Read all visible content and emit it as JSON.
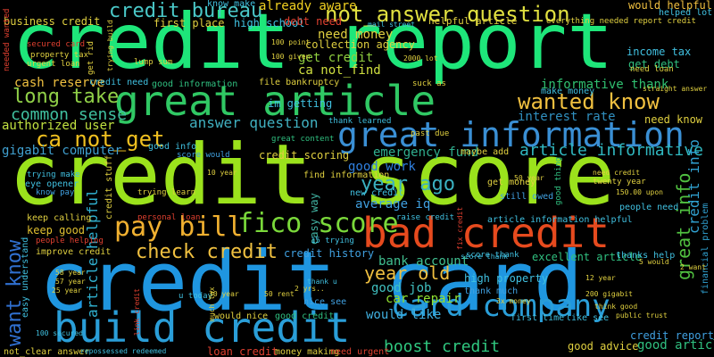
{
  "cloud": {
    "words": [
      {
        "name": "word-credit-report",
        "text": "credit report",
        "color": "#1ee67a"
      },
      {
        "name": "word-credit-score",
        "text": "credit score",
        "color": "#9be21c"
      },
      {
        "name": "word-credit-card",
        "text": "credit card",
        "color": "#1f96e0"
      },
      {
        "name": "word-great-article",
        "text": "great article",
        "color": "#30c864"
      },
      {
        "name": "word-bad-credit",
        "text": "bad credit",
        "color": "#e64a1e"
      },
      {
        "name": "word-great-information",
        "text": "great information",
        "color": "#3a8fd4"
      },
      {
        "name": "word-build-credit",
        "text": "build credit",
        "color": "#2a9ed8"
      },
      {
        "name": "word-card-company",
        "text": "card company",
        "color": "#2a9ed8"
      },
      {
        "name": "word-fico-score",
        "text": "fico score",
        "color": "#7ad83a"
      },
      {
        "name": "word-pay-bill",
        "text": "pay bill",
        "color": "#f0b030"
      },
      {
        "name": "word-credit-bureau",
        "text": "credit bureau",
        "color": "#4ac8c8"
      },
      {
        "name": "word-not-answer-question",
        "text": "not_answer question",
        "color": "#e0e040"
      },
      {
        "name": "word-already-aware",
        "text": "already aware",
        "color": "#f0d020"
      },
      {
        "name": "word-long-take",
        "text": "long take",
        "color": "#90d048"
      },
      {
        "name": "word-wanted-know",
        "text": "wanted know",
        "color": "#f0c040"
      },
      {
        "name": "word-ca-not-get",
        "text": "ca not_get",
        "color": "#f0c020"
      },
      {
        "name": "word-year-ago",
        "text": "year ago",
        "color": "#3ab0c0"
      },
      {
        "name": "word-year-old",
        "text": "year old",
        "color": "#f0c040"
      },
      {
        "name": "word-check-credit",
        "text": "check credit",
        "color": "#f0c040"
      },
      {
        "name": "word-boost-credit",
        "text": "boost credit",
        "color": "#30c880"
      },
      {
        "name": "word-article-informative",
        "text": "article informative",
        "color": "#30b8c0"
      },
      {
        "name": "word-want-know",
        "text": "want know",
        "color": "#3070d0"
      },
      {
        "name": "word-great-info",
        "text": "great info",
        "color": "#50c040"
      },
      {
        "name": "word-answer-question",
        "text": "answer question",
        "color": "#40b0c0"
      },
      {
        "name": "word-common-sense",
        "text": "common sense",
        "color": "#40c0a0"
      },
      {
        "name": "word-cash-reserve",
        "text": "cash reserve",
        "color": "#f0c040"
      },
      {
        "name": "word-authorized-user",
        "text": "authorized user",
        "color": "#c0e040"
      },
      {
        "name": "word-gigabit-computer",
        "text": "gigabit computer",
        "color": "#40a0d0"
      },
      {
        "name": "word-car-repair",
        "text": "car repair",
        "color": "#90e030"
      },
      {
        "name": "word-good-job",
        "text": "good job",
        "color": "#40c0c0"
      },
      {
        "name": "word-bank-account",
        "text": "bank account",
        "color": "#40c090"
      },
      {
        "name": "word-would-like",
        "text": "would like",
        "color": "#40b0e0"
      },
      {
        "name": "word-good-work",
        "text": "good work",
        "color": "#3080e0"
      },
      {
        "name": "word-emergency-fund",
        "text": "emergency fund",
        "color": "#30b090"
      },
      {
        "name": "word-interest-rate",
        "text": "interest rate",
        "color": "#3090c0"
      },
      {
        "name": "word-informative-thank",
        "text": "informative thank",
        "color": "#30c070"
      },
      {
        "name": "word-would-helpful",
        "text": "would helpful",
        "color": "#f0c040"
      },
      {
        "name": "word-get-credit",
        "text": "get credit",
        "color": "#90d040"
      },
      {
        "name": "word-ca-not-find",
        "text": "ca not_find",
        "color": "#d0e040"
      },
      {
        "name": "word-need-money",
        "text": "need money",
        "color": "#e0d040"
      },
      {
        "name": "word-collection-agency",
        "text": "collection agency",
        "color": "#e0d040"
      },
      {
        "name": "word-business-credit",
        "text": "business credit",
        "color": "#e0d040"
      },
      {
        "name": "word-good-article",
        "text": "good article",
        "color": "#30c080"
      },
      {
        "name": "word-credit-info",
        "text": "credit info",
        "color": "#30a0d0"
      },
      {
        "name": "word-average-iq",
        "text": "average iq",
        "color": "#40a0e0"
      },
      {
        "name": "word-easy-way",
        "text": "easy way",
        "color": "#40b0a0"
      },
      {
        "name": "word-article-helpful",
        "text": "article helpful",
        "color": "#30b0d0"
      },
      {
        "name": "word-keep-good",
        "text": "keep good",
        "color": "#e0c030"
      },
      {
        "name": "word-credit-history",
        "text": "credit history",
        "color": "#40a0e0"
      },
      {
        "name": "word-credit-scoring",
        "text": "credit scoring",
        "color": "#e0d040"
      },
      {
        "name": "word-im-getting",
        "text": "im getting",
        "color": "#40c0e0"
      },
      {
        "name": "word-first-place",
        "text": "first place",
        "color": "#e0d040"
      },
      {
        "name": "word-high-school",
        "text": "high school",
        "color": "#40c0e0"
      },
      {
        "name": "word-debt-need",
        "text": "debt need",
        "color": "#e04030"
      },
      {
        "name": "word-income-tax",
        "text": "income tax",
        "color": "#40c0e0"
      },
      {
        "name": "word-get-debt",
        "text": "get debt",
        "color": "#30c080"
      },
      {
        "name": "word-need-know",
        "text": "need know",
        "color": "#e0d040"
      },
      {
        "name": "word-make-money",
        "text": "make money",
        "color": "#40c0e0"
      },
      {
        "name": "word-people-need",
        "text": "people need",
        "color": "#40c0e0"
      },
      {
        "name": "word-still-owed",
        "text": "still owed",
        "color": "#40a0e0"
      },
      {
        "name": "word-high-property",
        "text": "high property",
        "color": "#40c0e0"
      },
      {
        "name": "word-thank-much",
        "text": "thank much",
        "color": "#40a0e0"
      },
      {
        "name": "word-excellent-article",
        "text": "excellent article",
        "color": "#30c080"
      },
      {
        "name": "word-thanks-help",
        "text": "thanks help",
        "color": "#40c0e0"
      },
      {
        "name": "word-credit-reporting",
        "text": "credit reporting",
        "color": "#40a0e0"
      },
      {
        "name": "word-financial-problem",
        "text": "financial problem",
        "color": "#30a0d0"
      },
      {
        "name": "word-loan-credit",
        "text": "loan credit",
        "color": "#e04030"
      },
      {
        "name": "word-money-making",
        "text": "money making",
        "color": "#e0d040"
      },
      {
        "name": "word-need-urgent",
        "text": "need urgent",
        "color": "#e04030"
      },
      {
        "name": "word-not-clear-answer",
        "text": "not_clear answer",
        "color": "#e0d040"
      },
      {
        "name": "word-first-time",
        "text": "first time",
        "color": "#40c0e0"
      },
      {
        "name": "word-like-see",
        "text": "like see",
        "color": "#40c0e0"
      },
      {
        "name": "word-good-advice",
        "text": "good advice",
        "color": "#e0d040"
      },
      {
        "name": "word-nice-see",
        "text": "nice see",
        "color": "#40a0e0"
      },
      {
        "name": "word-would-nice",
        "text": "would nice",
        "color": "#e0d040"
      },
      {
        "name": "word-good-credit",
        "text": "good credit",
        "color": "#30c080"
      },
      {
        "name": "word-easy-understand",
        "text": "easy understand",
        "color": "#40c0e0"
      },
      {
        "name": "word-improve-credit",
        "text": "improve credit",
        "color": "#30c080"
      },
      {
        "name": "word-keep-calling",
        "text": "keep calling",
        "color": "#e0d040"
      },
      {
        "name": "word-people-helping",
        "text": "people helping",
        "color": "#e04030"
      },
      {
        "name": "word-eye-opener",
        "text": "eye opener",
        "color": "#40c0e0"
      },
      {
        "name": "word-trying-make",
        "text": "trying make",
        "color": "#40c0e0"
      },
      {
        "name": "word-know-pay",
        "text": "know pay",
        "color": "#40a0e0"
      },
      {
        "name": "word-trying-learn",
        "text": "trying learn",
        "color": "#e0d040"
      },
      {
        "name": "word-personal-loan",
        "text": "personal loan",
        "color": "#e04030"
      },
      {
        "name": "word-credit-stuff",
        "text": "credit stuff",
        "color": "#e0d040"
      },
      {
        "name": "word-score-would",
        "text": "score would",
        "color": "#40a0e0"
      },
      {
        "name": "word-good-info",
        "text": "good info",
        "color": "#40c0e0"
      },
      {
        "name": "word-new-credit",
        "text": "new credit",
        "color": "#40c0e0"
      },
      {
        "name": "word-find-information",
        "text": "find information",
        "color": "#e0d040"
      },
      {
        "name": "word-get-money",
        "text": "get money",
        "color": "#e0d040"
      },
      {
        "name": "word-maybe-add",
        "text": "maybe add",
        "color": "#e0d040"
      },
      {
        "name": "word-raise-credit",
        "text": "raise credit",
        "color": "#40c0e0"
      },
      {
        "name": "word-article-information-helpful",
        "text": "article information helpful",
        "color": "#40c0e0"
      },
      {
        "name": "word-score-thank",
        "text": "score thank",
        "color": "#40c0e0"
      },
      {
        "name": "word-thank-learned",
        "text": "thank learned",
        "color": "#40c0e0"
      },
      {
        "name": "word-past-due",
        "text": "past due",
        "color": "#e0d040"
      },
      {
        "name": "word-great-content",
        "text": "great content",
        "color": "#30c080"
      },
      {
        "name": "word-file-bankruptcy",
        "text": "file bankruptcy",
        "color": "#e0d040"
      },
      {
        "name": "word-good-information",
        "text": "good information",
        "color": "#30c080"
      },
      {
        "name": "word-suck-as",
        "text": "suck as",
        "color": "#e0d040"
      },
      {
        "name": "word-helpful-article",
        "text": "helpful article",
        "color": "#e0d040"
      },
      {
        "name": "word-everything-needed-report-credit",
        "text": "everything needed report credit",
        "color": "#e0d040"
      },
      {
        "name": "word-know-make",
        "text": "know make",
        "color": "#40c0e0"
      },
      {
        "name": "word-helped-lot",
        "text": "helped lot",
        "color": "#40c0e0"
      },
      {
        "name": "word-secured-card",
        "text": "secured card",
        "color": "#e04030"
      },
      {
        "name": "word-property-tax",
        "text": "property tax",
        "color": "#e0d040"
      },
      {
        "name": "word-urgent-loan",
        "text": "urgent loan",
        "color": "#e0d040"
      },
      {
        "name": "word-lump-sum",
        "text": "lump sum",
        "color": "#e0d040"
      },
      {
        "name": "word-trying-build",
        "text": "trying build",
        "color": "#e0d040"
      },
      {
        "name": "word-get-rid",
        "text": "get rid",
        "color": "#e0d040"
      },
      {
        "name": "word-needed-wanted",
        "text": "needed wanted",
        "color": "#e04030"
      },
      {
        "name": "word-credit-need",
        "text": "credit need",
        "color": "#40c0e0"
      },
      {
        "name": "word-mail-street",
        "text": "mail street",
        "color": "#40c0e0"
      },
      {
        "name": "word-need-loan",
        "text": "need loan",
        "color": "#e0d040"
      },
      {
        "name": "word-straight-answer",
        "text": "straight answer",
        "color": "#e0d040"
      },
      {
        "name": "word-repossessed-redeemed",
        "text": "repossessed redeemed",
        "color": "#40c0e0"
      },
      {
        "name": "word-public-trust",
        "text": "public trust",
        "color": "#e0d040"
      },
      {
        "name": "word-think-good",
        "text": "think good",
        "color": "#e0d040"
      },
      {
        "name": "word-good-thing",
        "text": "good thing",
        "color": "#30c080"
      },
      {
        "name": "word-twenty-year",
        "text": "twenty year",
        "color": "#e0d040"
      },
      {
        "name": "word-need-credit",
        "text": "need credit",
        "color": "#e0d040"
      },
      {
        "name": "word-fix-credit",
        "text": "fix credit",
        "color": "#e04030"
      },
      {
        "name": "word-score-thank-2",
        "text": "score thank",
        "color": "#40c0e0"
      },
      {
        "name": "word-thank-u",
        "text": "thank u",
        "color": "#40c0e0"
      },
      {
        "name": "word-u-today",
        "text": "u today",
        "color": "#40c0e0"
      },
      {
        "name": "word-much-tax",
        "text": "much tax",
        "color": "#e0d040"
      },
      {
        "name": "word-link-credit",
        "text": "link credit",
        "color": "#e04030"
      },
      {
        "name": "word-25-year",
        "text": "25 year",
        "color": "#e0d040"
      },
      {
        "name": "word-58-year",
        "text": "58 year",
        "color": "#e0d040"
      },
      {
        "name": "word-57-year",
        "text": "57 year",
        "color": "#e0d040"
      },
      {
        "name": "word-30-year",
        "text": "30 year",
        "color": "#e0d040"
      },
      {
        "name": "word-100-secured",
        "text": "100 secured",
        "color": "#40c0e0"
      },
      {
        "name": "word-15-trying",
        "text": "15 trying",
        "color": "#40c0e0"
      },
      {
        "name": "word-10-year",
        "text": "10 year",
        "color": "#e0d040"
      },
      {
        "name": "word-100-point",
        "text": "100 point",
        "color": "#e0d040"
      },
      {
        "name": "word-100-given",
        "text": "100 given",
        "color": "#e0d040"
      },
      {
        "name": "word-2000-lot",
        "text": "2000 lot",
        "color": "#e0d040"
      },
      {
        "name": "word-150-upon",
        "text": "150.00 upon",
        "color": "#e0d040"
      },
      {
        "name": "word-200-gigabit",
        "text": "200 gigabit",
        "color": "#e0d040"
      },
      {
        "name": "word-12-year",
        "text": "12 year",
        "color": "#e0d040"
      },
      {
        "name": "word-2-want",
        "text": "2 want",
        "color": "#e0d040"
      },
      {
        "name": "word-5-would",
        "text": "5 would",
        "color": "#e0d040"
      },
      {
        "name": "word-50-rent",
        "text": "50 rent",
        "color": "#e0d040"
      },
      {
        "name": "word-50-year",
        "text": "50 year",
        "color": "#e0d040"
      },
      {
        "name": "word-3x-money",
        "text": "3x money",
        "color": "#e0d040"
      },
      {
        "name": "word-2-yrs",
        "text": "2 yrs..",
        "color": "#e0d040"
      }
    ]
  }
}
